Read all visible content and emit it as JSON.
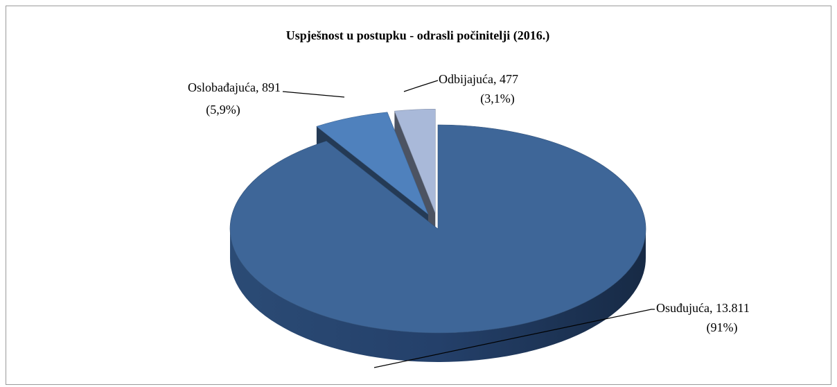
{
  "chart_data": {
    "type": "pie3d",
    "title": "Uspješnost u postupku - odrasli počinitelji (2016.)",
    "categories": [
      "Osuđujuća",
      "Oslobađajuća",
      "Odbijajuća"
    ],
    "values": [
      13811,
      891,
      477
    ],
    "value_labels": [
      "13.811",
      "891",
      "477"
    ],
    "separator": ", ",
    "percents": [
      91,
      5.9,
      3.1
    ],
    "percent_labels": [
      "(91%)",
      "(5,9%)",
      "(3,1%)"
    ],
    "colors": [
      "#3e6698",
      "#4f81bd",
      "#a9b9d9"
    ],
    "explode": [
      false,
      true,
      true
    ]
  }
}
